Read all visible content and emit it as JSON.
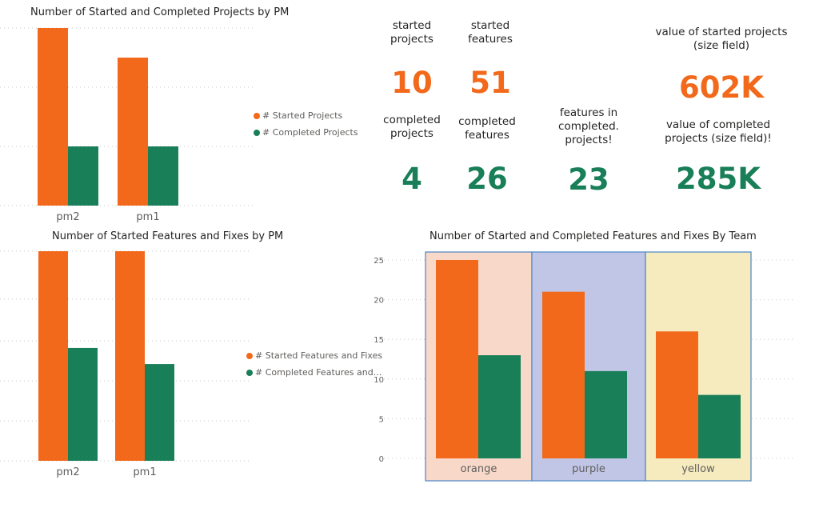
{
  "colors": {
    "started": "#f2691b",
    "completed": "#197f58",
    "team_bg": [
      "#f8d8c9",
      "#c1c6e6",
      "#f5ebbf"
    ],
    "team_border": "#4a86c6"
  },
  "chart_data": [
    {
      "type": "bar",
      "title": "Number of Started and Completed Projects by PM",
      "categories": [
        "pm2",
        "pm1"
      ],
      "series": [
        {
          "name": "# Started Projects",
          "values": [
            6,
            5
          ]
        },
        {
          "name": "# Completed Projects",
          "values": [
            2,
            2
          ]
        }
      ],
      "ylim": [
        0,
        6
      ],
      "legend": "right",
      "grid": true
    },
    {
      "type": "bar",
      "title": "Number of Started Features and Fixes by PM",
      "categories": [
        "pm2",
        "pm1"
      ],
      "series": [
        {
          "name": "# Started Features and Fixes",
          "values": [
            26,
            26
          ]
        },
        {
          "name": "# Completed Features and...",
          "values": [
            14,
            12
          ]
        }
      ],
      "ylim": [
        0,
        26
      ],
      "legend": "right",
      "grid": true
    },
    {
      "type": "bar",
      "title": "Number of Started and Completed Features and Fixes By Team",
      "categories": [
        "orange",
        "purple",
        "yellow"
      ],
      "series": [
        {
          "values": [
            25,
            21,
            16
          ]
        },
        {
          "values": [
            13,
            11,
            8
          ]
        }
      ],
      "yticks": [
        "0",
        "5",
        "10",
        "15",
        "20",
        "25"
      ],
      "ylim": [
        0,
        25
      ],
      "legend": "none",
      "grid": true
    }
  ],
  "kpis": {
    "started_projects": {
      "label": "started\nprojects",
      "value": "10"
    },
    "started_features": {
      "label": "started\nfeatures",
      "value": "51"
    },
    "started_value": {
      "label": "value of started projects\n(size field)",
      "value": "602K"
    },
    "completed_projects": {
      "label": "completed\nprojects",
      "value": "4"
    },
    "completed_features": {
      "label": "completed\nfeatures",
      "value": "26"
    },
    "features_in_completed": {
      "label": "features in\ncompleted.\nprojects!",
      "value": "23"
    },
    "completed_value": {
      "label": "value of completed\nprojects (size field)!",
      "value": "285K"
    }
  }
}
